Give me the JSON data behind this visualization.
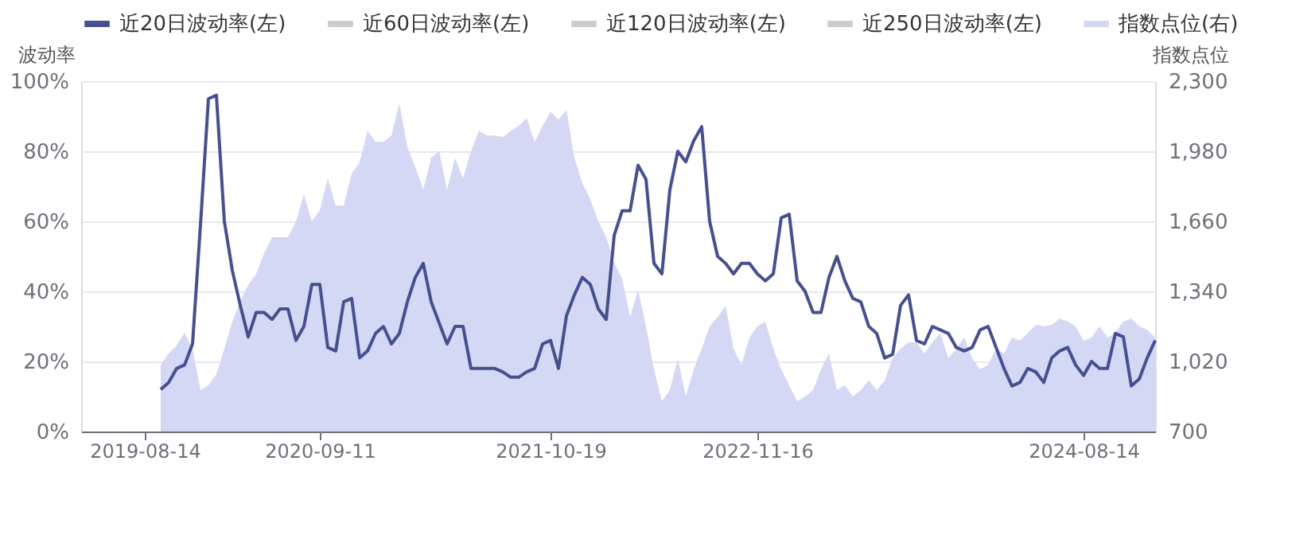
{
  "chart_data": {
    "type": "line",
    "categories": [
      null,
      null,
      null,
      null,
      null,
      null,
      null,
      null,
      "2019-08-14",
      null,
      null,
      null,
      null,
      null,
      null,
      null,
      null,
      null,
      null,
      null,
      null,
      null,
      null,
      null,
      null,
      null,
      null,
      null,
      null,
      null,
      "2020-09-11",
      null,
      null,
      null,
      null,
      null,
      null,
      null,
      null,
      null,
      null,
      null,
      null,
      null,
      null,
      null,
      null,
      null,
      null,
      null,
      null,
      null,
      null,
      null,
      null,
      null,
      null,
      null,
      null,
      "2021-10-19",
      null,
      null,
      null,
      null,
      null,
      null,
      null,
      null,
      null,
      null,
      null,
      null,
      null,
      null,
      null,
      null,
      null,
      null,
      null,
      null,
      null,
      null,
      null,
      null,
      null,
      "2022-11-16",
      null,
      null,
      null,
      null,
      null,
      null,
      null,
      null,
      null,
      null,
      null,
      null,
      null,
      null,
      null,
      null,
      null,
      null,
      null,
      null,
      null,
      null,
      null,
      null,
      null,
      null,
      null,
      null,
      null,
      null,
      null,
      null,
      null,
      null,
      null,
      null,
      null,
      null,
      null,
      null,
      "2024-08-14",
      null,
      null,
      null,
      null,
      null,
      null,
      null,
      null,
      null
    ],
    "series": [
      {
        "name": "近20日波动率(左)",
        "color": "#46508f",
        "values": [
          null,
          null,
          null,
          null,
          null,
          null,
          null,
          null,
          null,
          null,
          12,
          14,
          18,
          19,
          25,
          59,
          95,
          96,
          60,
          46,
          36,
          27,
          34,
          34,
          32,
          35,
          35,
          26,
          30,
          42,
          42,
          24,
          23,
          37,
          38,
          21,
          23,
          28,
          30,
          25,
          28,
          37,
          44,
          48,
          37,
          31,
          25,
          30,
          30,
          18,
          18,
          18,
          18,
          17,
          15.5,
          15.5,
          17,
          18,
          25,
          26,
          18,
          33,
          39,
          44,
          42,
          35,
          32,
          56,
          63,
          63,
          76,
          72,
          48,
          45,
          69,
          80,
          77,
          83,
          87,
          60,
          50,
          48,
          45,
          48,
          48,
          45,
          43,
          45,
          61,
          62,
          43,
          40,
          34,
          34,
          44,
          50,
          43,
          38,
          37,
          30,
          28,
          21,
          22,
          36,
          39,
          26,
          25,
          30,
          29,
          28,
          24,
          23,
          24,
          29,
          30,
          24,
          18,
          13,
          14,
          18,
          17,
          14,
          21,
          23,
          24,
          19,
          16,
          20,
          18,
          18,
          28,
          27,
          13,
          15,
          21,
          26
        ]
      },
      {
        "name": "近60日波动率(左)",
        "color": "#cccccc",
        "values": [
          null,
          null,
          null,
          null,
          null,
          null,
          null,
          null,
          null,
          null,
          null,
          null,
          null,
          null,
          null,
          null,
          null,
          null,
          null,
          null,
          null,
          null,
          null,
          null,
          null,
          null,
          null,
          null,
          null,
          null,
          null,
          null,
          null,
          null,
          null,
          null,
          null,
          null,
          null,
          null,
          null,
          null,
          null,
          null,
          null,
          null,
          null,
          null,
          null,
          null,
          null,
          null,
          null,
          null,
          null,
          null,
          null,
          null,
          null,
          null,
          null,
          null,
          null,
          null,
          null,
          null,
          null,
          null,
          null,
          null,
          null,
          null,
          null,
          null,
          null,
          null,
          null,
          null,
          null,
          null,
          null,
          null,
          null,
          null,
          null,
          null,
          null,
          null,
          null,
          null,
          null,
          null,
          null,
          null,
          null,
          null,
          null,
          null,
          null,
          null,
          null,
          null,
          null,
          null,
          null,
          null,
          null,
          null,
          null,
          null,
          null,
          null,
          null,
          null,
          null,
          null,
          null,
          null,
          null,
          null,
          null,
          null,
          null,
          null,
          null,
          null,
          null,
          null,
          null,
          null,
          null,
          null,
          null,
          null,
          null,
          null
        ]
      },
      {
        "name": "近120日波动率(左)",
        "color": "#cccccc",
        "values": [
          null,
          null,
          null,
          null,
          null,
          null,
          null,
          null,
          null,
          null,
          null,
          null,
          null,
          null,
          null,
          null,
          null,
          null,
          null,
          null,
          null,
          null,
          null,
          null,
          null,
          null,
          null,
          null,
          null,
          null,
          null,
          null,
          null,
          null,
          null,
          null,
          null,
          null,
          null,
          null,
          null,
          null,
          null,
          null,
          null,
          null,
          null,
          null,
          null,
          null,
          null,
          null,
          null,
          null,
          null,
          null,
          null,
          null,
          null,
          null,
          null,
          null,
          null,
          null,
          null,
          null,
          null,
          null,
          null,
          null,
          null,
          null,
          null,
          null,
          null,
          null,
          null,
          null,
          null,
          null,
          null,
          null,
          null,
          null,
          null,
          null,
          null,
          null,
          null,
          null,
          null,
          null,
          null,
          null,
          null,
          null,
          null,
          null,
          null,
          null,
          null,
          null,
          null,
          null,
          null,
          null,
          null,
          null,
          null,
          null,
          null,
          null,
          null,
          null,
          null,
          null,
          null,
          null,
          null,
          null,
          null,
          null,
          null,
          null,
          null,
          null,
          null,
          null,
          null,
          null,
          null,
          null,
          null,
          null,
          null,
          null
        ]
      },
      {
        "name": "近250日波动率(左)",
        "color": "#cccccc",
        "values": [
          null,
          null,
          null,
          null,
          null,
          null,
          null,
          null,
          null,
          null,
          null,
          null,
          null,
          null,
          null,
          null,
          null,
          null,
          null,
          null,
          null,
          null,
          null,
          null,
          null,
          null,
          null,
          null,
          null,
          null,
          null,
          null,
          null,
          null,
          null,
          null,
          null,
          null,
          null,
          null,
          null,
          null,
          null,
          null,
          null,
          null,
          null,
          null,
          null,
          null,
          null,
          null,
          null,
          null,
          null,
          null,
          null,
          null,
          null,
          null,
          null,
          null,
          null,
          null,
          null,
          null,
          null,
          null,
          null,
          null,
          null,
          null,
          null,
          null,
          null,
          null,
          null,
          null,
          null,
          null,
          null,
          null,
          null,
          null,
          null,
          null,
          null,
          null,
          null,
          null,
          null,
          null,
          null,
          null,
          null,
          null,
          null,
          null,
          null,
          null,
          null,
          null,
          null,
          null,
          null,
          null,
          null,
          null,
          null,
          null,
          null,
          null,
          null,
          null,
          null,
          null,
          null,
          null,
          null,
          null,
          null,
          null,
          null,
          null,
          null,
          null,
          null,
          null,
          null,
          null,
          null,
          null,
          null,
          null,
          null,
          null
        ]
      },
      {
        "name": "指数点位(右)",
        "type": "area",
        "axis": "y2",
        "color": "#d4d8f5",
        "values": [
          null,
          null,
          null,
          null,
          null,
          null,
          null,
          null,
          null,
          null,
          1005,
          1056,
          1093,
          1151,
          1078,
          889,
          911,
          962,
          1078,
          1202,
          1296,
          1369,
          1420,
          1514,
          1587,
          1587,
          1587,
          1660,
          1783,
          1660,
          1711,
          1856,
          1732,
          1732,
          1878,
          1929,
          2074,
          2023,
          2023,
          2052,
          2198,
          2001,
          1907,
          1805,
          1950,
          1980,
          1805,
          1950,
          1856,
          1980,
          2074,
          2052,
          2052,
          2045,
          2074,
          2096,
          2132,
          2023,
          2096,
          2161,
          2125,
          2169,
          1950,
          1834,
          1761,
          1660,
          1587,
          1471,
          1398,
          1223,
          1347,
          1180,
          984,
          838,
          889,
          1035,
          860,
          984,
          1078,
          1180,
          1223,
          1274,
          1078,
          1005,
          1129,
          1180,
          1202,
          1078,
          984,
          911,
          838,
          860,
          889,
          984,
          1056,
          889,
          911,
          860,
          889,
          933,
          889,
          933,
          1035,
          1078,
          1107,
          1107,
          1056,
          1107,
          1151,
          1035,
          1078,
          1129,
          1035,
          984,
          1005,
          1078,
          1056,
          1129,
          1115,
          1151,
          1187,
          1180,
          1187,
          1216,
          1202,
          1180,
          1115,
          1129,
          1180,
          1129,
          1151,
          1202,
          1216,
          1180,
          1165,
          1129
        ]
      }
    ],
    "ylabel": "波动率",
    "y2label": "指数点位",
    "ylim": [
      0,
      100
    ],
    "yticks": [
      {
        "value": 0,
        "label": "0%"
      },
      {
        "value": 20,
        "label": "20%"
      },
      {
        "value": 40,
        "label": "40%"
      },
      {
        "value": 60,
        "label": "60%"
      },
      {
        "value": 80,
        "label": "80%"
      },
      {
        "value": 100,
        "label": "100%"
      }
    ],
    "y2lim": [
      700,
      2300
    ],
    "y2ticks": [
      700,
      {
        "value": 1020,
        "label": "1,020"
      },
      {
        "value": 1340,
        "label": "1,340"
      },
      {
        "value": 1660,
        "label": "1,660"
      },
      {
        "value": 1980,
        "label": "1,980"
      },
      {
        "value": 2300,
        "label": "2,300"
      }
    ],
    "grid": "y",
    "legend": "top"
  }
}
